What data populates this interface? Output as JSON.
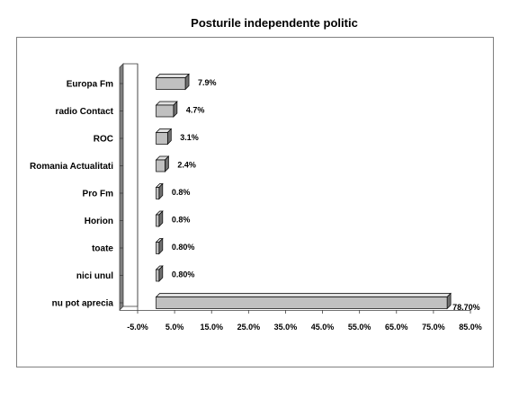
{
  "chart_data": {
    "type": "bar",
    "orientation": "horizontal",
    "title": "Posturile independente politic",
    "xlabel": "",
    "ylabel": "",
    "categories": [
      "Europa Fm",
      "radio Contact",
      "ROC",
      "Romania Actualitati",
      "Pro Fm",
      "Horion",
      "toate",
      "nici unul",
      "nu pot aprecia"
    ],
    "values": [
      7.9,
      4.7,
      3.1,
      2.4,
      0.8,
      0.8,
      0.8,
      0.8,
      78.7
    ],
    "data_labels": [
      "7.9%",
      "4.7%",
      "3.1%",
      "2.4%",
      "0.8%",
      "0.8%",
      "0.80%",
      "0.80%",
      "78.70%"
    ],
    "xlim": [
      -5,
      85
    ],
    "x_ticks": [
      -5,
      5,
      15,
      25,
      35,
      45,
      55,
      65,
      75,
      85
    ],
    "x_tick_labels": [
      "-5.0%",
      "5.0%",
      "15.0%",
      "25.0%",
      "35.0%",
      "45.0%",
      "55.0%",
      "65.0%",
      "75.0%",
      "85.0%"
    ],
    "grid": false,
    "legend": "none",
    "colors": {
      "bar_front": "#c0c0c0",
      "bar_side": "#707070",
      "bar_top": "#e0e0e0",
      "wall": "#808080",
      "border": "#808080"
    }
  }
}
